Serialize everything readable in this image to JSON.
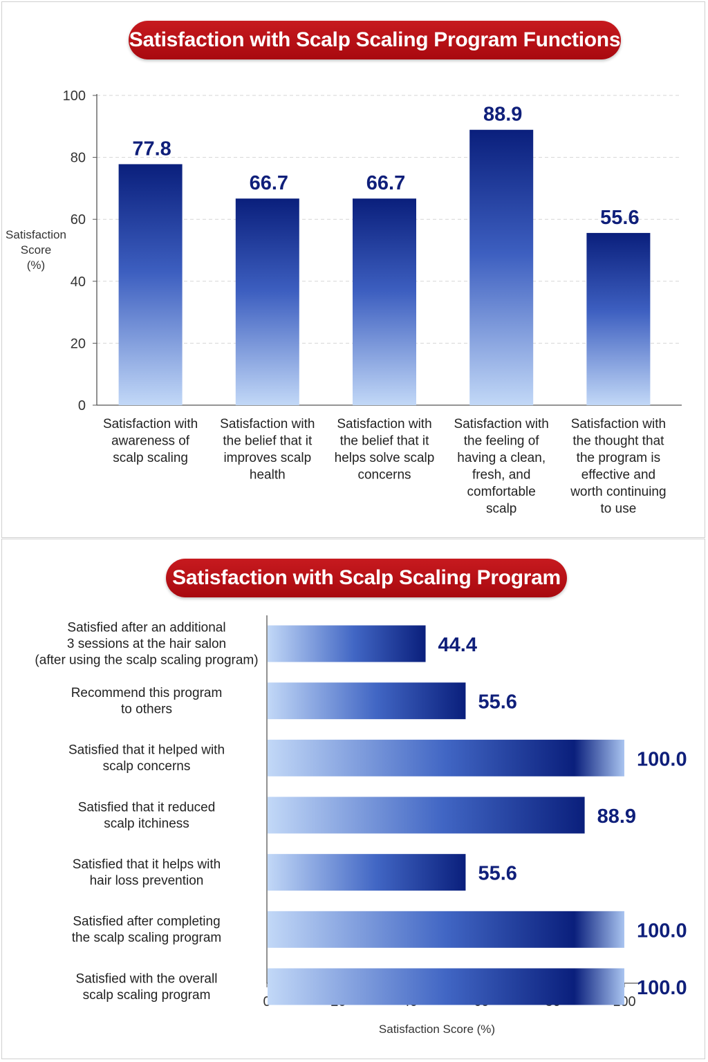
{
  "chart_data": [
    {
      "type": "bar",
      "orientation": "vertical",
      "title": "Satisfaction with Scalp Scaling Program Functions",
      "ylabel": [
        "Satisfaction",
        "Score",
        "(%)"
      ],
      "ylim": [
        0,
        100
      ],
      "yticks": [
        0,
        20,
        40,
        60,
        80,
        100
      ],
      "grid": true,
      "categories": [
        [
          "Satisfaction with",
          "awareness of",
          "scalp scaling"
        ],
        [
          "Satisfaction with",
          "the belief that it",
          "improves scalp",
          "health"
        ],
        [
          "Satisfaction with",
          "the belief that it",
          "helps solve scalp",
          "concerns"
        ],
        [
          "Satisfaction with",
          "the feeling of",
          "having a clean,",
          "fresh, and",
          "comfortable",
          "scalp"
        ],
        [
          "Satisfaction with",
          "the thought that",
          "the program is",
          "effective and",
          "worth continuing",
          "to use"
        ]
      ],
      "values": [
        77.8,
        66.7,
        66.7,
        88.9,
        55.6
      ],
      "value_labels": [
        "77.8",
        "66.7",
        "66.7",
        "88.9",
        "55.6"
      ],
      "colors": {
        "bar_top": "#0a1f7c",
        "bar_bottom": "#bcd4f5",
        "label": "#0f1f7a"
      }
    },
    {
      "type": "bar",
      "orientation": "horizontal",
      "title": "Satisfaction with Scalp Scaling Program",
      "xlabel": "Satisfaction Score (%)",
      "xlim": [
        0,
        100
      ],
      "xticks": [
        0,
        20,
        40,
        60,
        80,
        100
      ],
      "categories": [
        [
          "Satisfied after an additional",
          "3 sessions at the hair salon",
          "(after using the scalp scaling program)"
        ],
        [
          "Recommend this program",
          "to others"
        ],
        [
          "Satisfied that it helped with",
          "scalp concerns"
        ],
        [
          "Satisfied that it reduced",
          "scalp itchiness"
        ],
        [
          "Satisfied that it helps with",
          "hair loss prevention"
        ],
        [
          "Satisfied after completing",
          "the scalp scaling program"
        ],
        [
          "Satisfied with the overall",
          "scalp scaling program"
        ]
      ],
      "values": [
        44.4,
        55.6,
        100.0,
        88.9,
        55.6,
        100.0,
        100.0
      ],
      "value_labels": [
        "44.4",
        "55.6",
        "100.0",
        "88.9",
        "55.6",
        "100.0",
        "100.0"
      ],
      "colors": {
        "bar_light": "#bcd4f5",
        "bar_dark": "#0a1f7c",
        "label": "#0f1f7a",
        "title_bg": "#b50f15"
      }
    }
  ]
}
